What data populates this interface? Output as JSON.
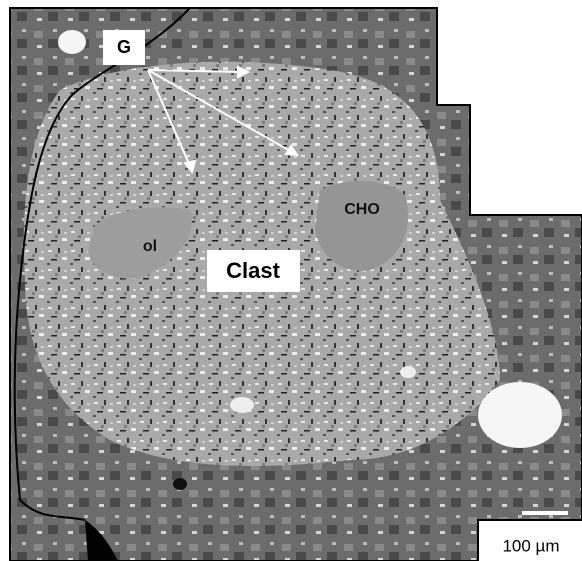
{
  "labels": {
    "g": "G",
    "ol": "ol",
    "clast": "Clast",
    "cho": "CHO",
    "scale": "100 µm"
  }
}
